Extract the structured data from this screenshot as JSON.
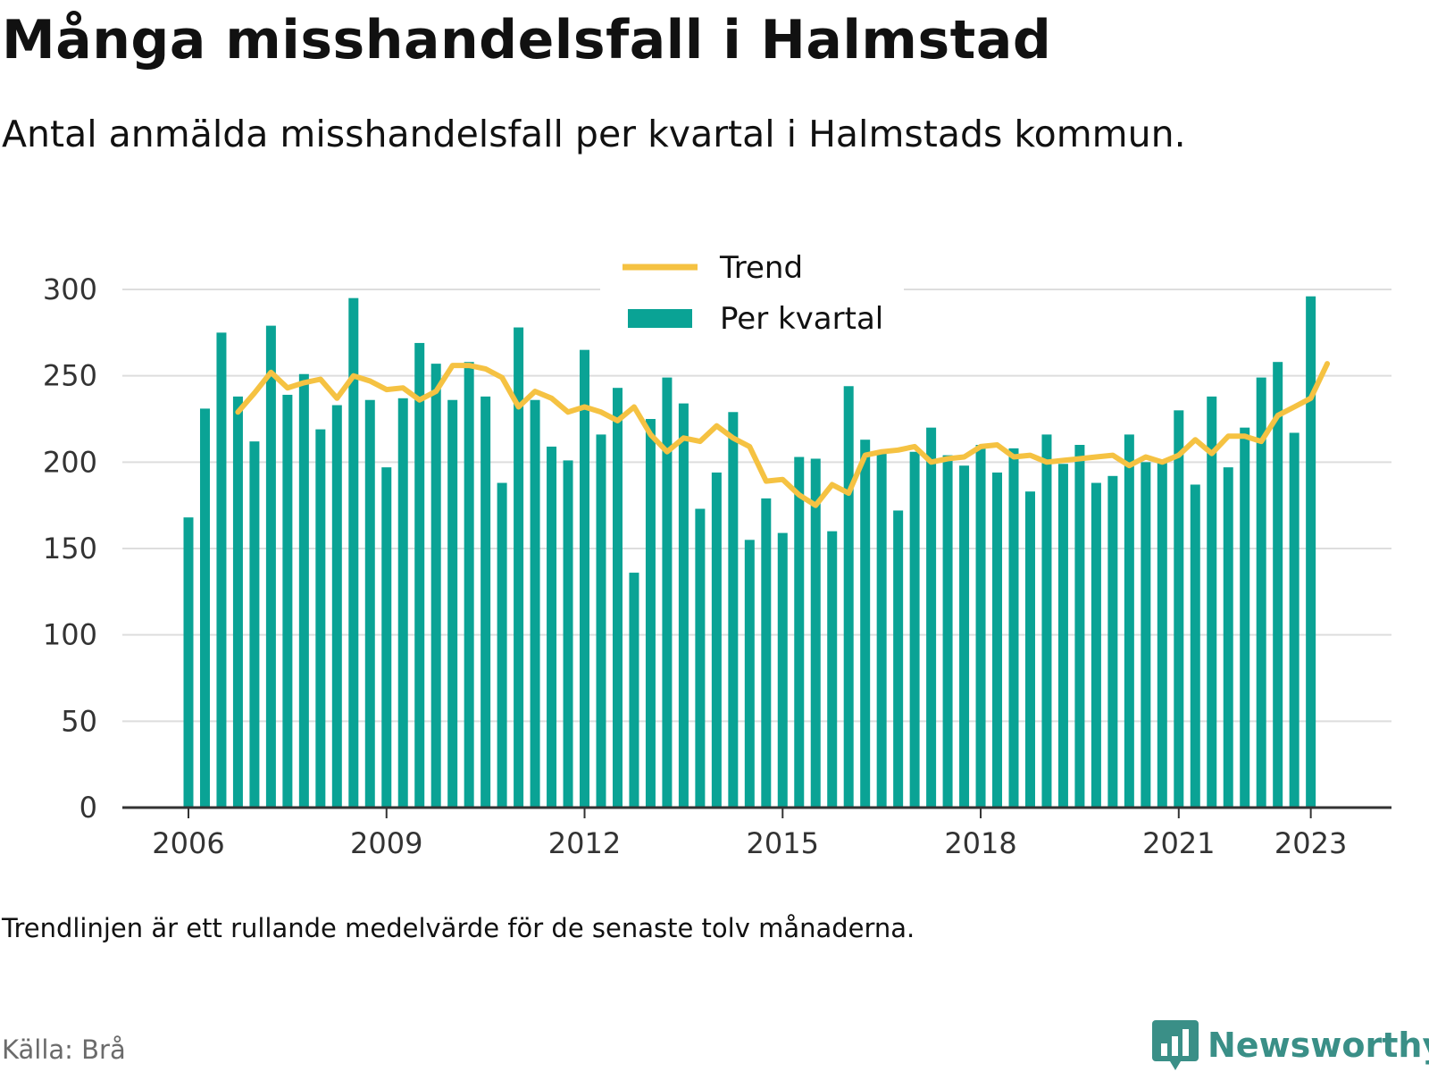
{
  "title": "Många misshandelsfall i Halmstad",
  "subtitle": "Antal anmälda misshandelsfall per kvartal i Halmstads kommun.",
  "note": "Trendlinjen är ett rullande medelvärde för de senaste tolv månaderna.",
  "source": "Källa: Brå",
  "brand": {
    "name": "Newsworthy",
    "icon": "newsworthy-chat-bars-icon"
  },
  "colors": {
    "bars": "#0aa395",
    "trend": "#f5c242",
    "grid": "#dddddd",
    "axis": "#333333",
    "brand": "#3a8f87"
  },
  "chart_data": {
    "type": "bar",
    "ylim": [
      0,
      300
    ],
    "y_ticks": [
      0,
      50,
      100,
      150,
      200,
      250,
      300
    ],
    "x_tick_labels": [
      "2006",
      "2009",
      "2012",
      "2015",
      "2018",
      "2021",
      "2023"
    ],
    "x_tick_quarter_index": [
      0,
      12,
      24,
      36,
      48,
      60,
      68
    ],
    "grid": true,
    "legend_position": "top-center",
    "series": [
      {
        "name": "Per kvartal",
        "type": "bar",
        "values": [
          168,
          231,
          275,
          238,
          212,
          279,
          239,
          251,
          219,
          233,
          295,
          236,
          197,
          237,
          269,
          257,
          236,
          258,
          238,
          188,
          278,
          236,
          209,
          201,
          265,
          216,
          243,
          136,
          225,
          249,
          234,
          173,
          194,
          229,
          155,
          179,
          159,
          203,
          202,
          160,
          244,
          213,
          205,
          172,
          206,
          220,
          204,
          198,
          210,
          194,
          208,
          183,
          216,
          199,
          210,
          188,
          192,
          216,
          200,
          200,
          230,
          187,
          238,
          197,
          220,
          249,
          258,
          217,
          296
        ]
      },
      {
        "name": "Trend",
        "type": "line",
        "start_index": 3,
        "values": [
          229,
          240,
          252,
          243,
          246,
          248,
          237,
          250,
          247,
          242,
          243,
          236,
          241,
          256,
          256,
          254,
          249,
          232,
          241,
          237,
          229,
          232,
          229,
          224,
          232,
          216,
          206,
          214,
          212,
          221,
          214,
          209,
          189,
          190,
          181,
          175,
          187,
          182,
          204,
          206,
          207,
          209,
          200,
          202,
          203,
          209,
          210,
          203,
          204,
          200,
          201,
          202,
          203,
          204,
          198,
          203,
          200,
          204,
          213,
          205,
          215,
          215,
          212,
          227,
          232,
          237,
          257
        ]
      }
    ]
  }
}
